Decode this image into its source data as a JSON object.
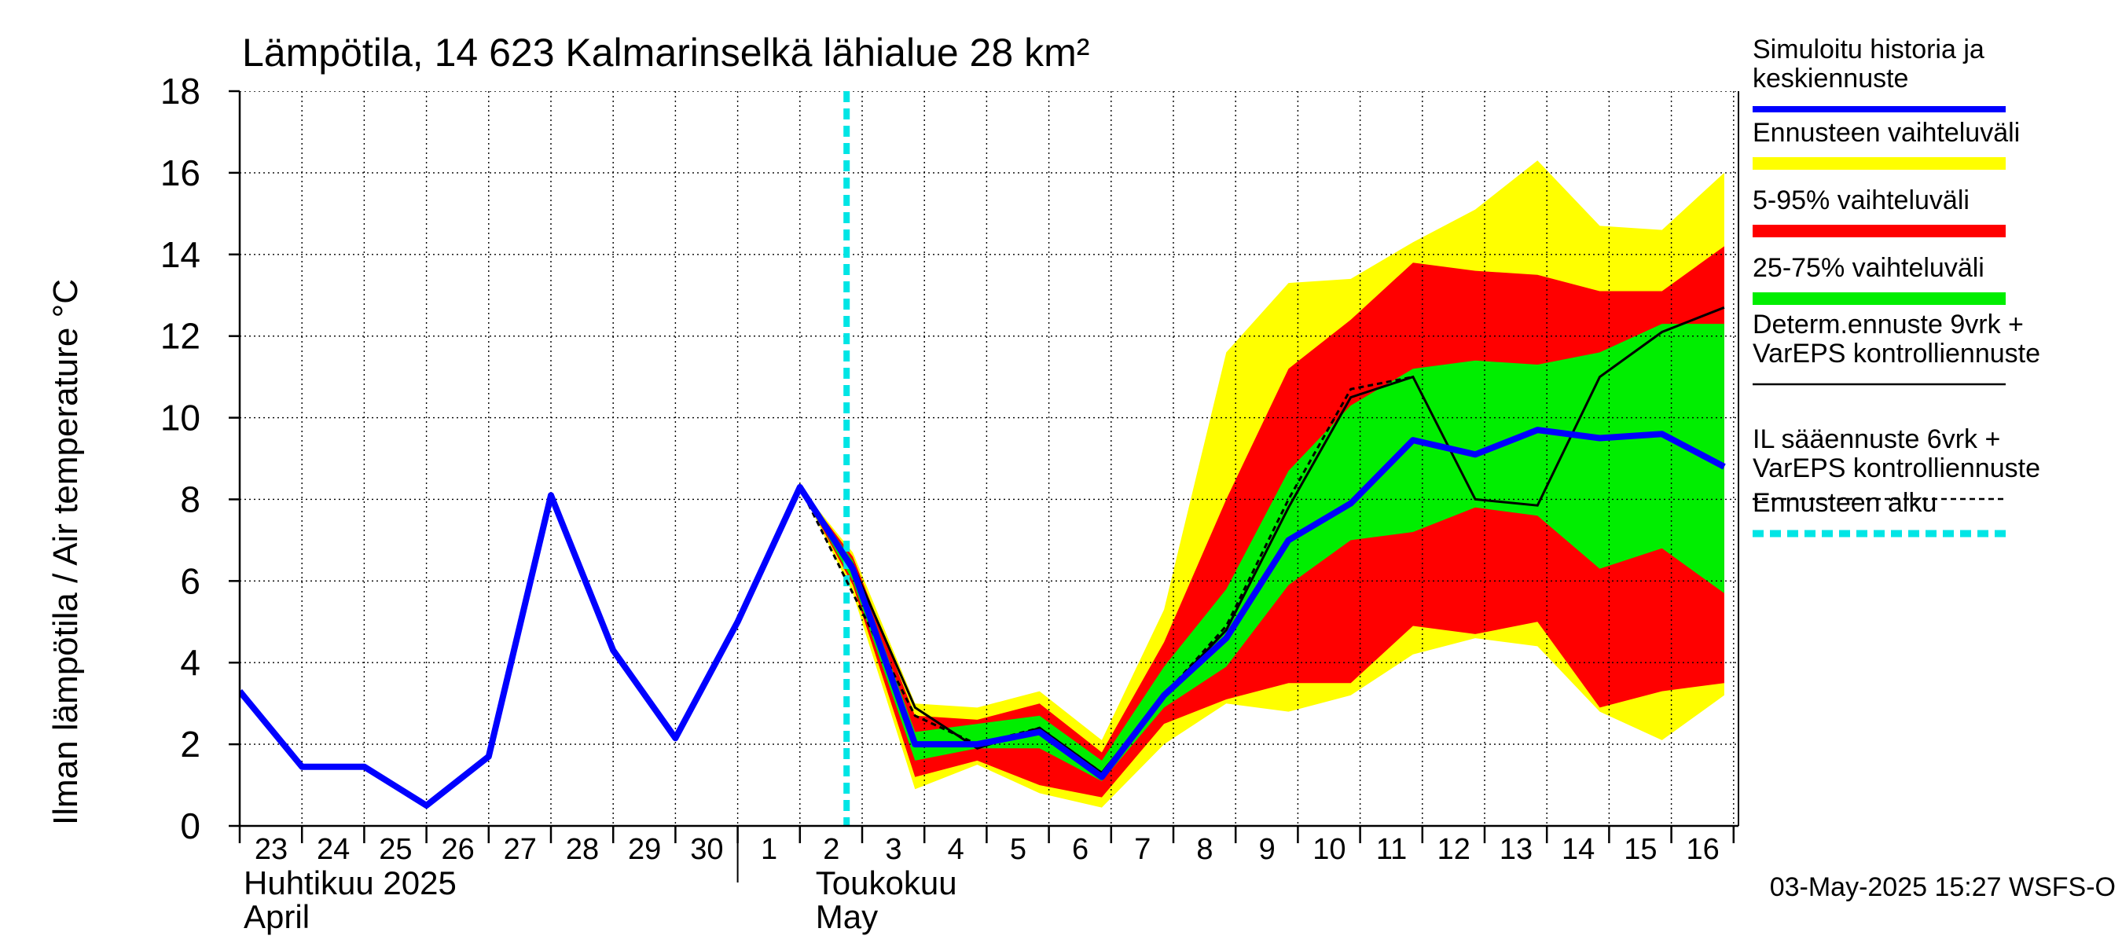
{
  "chart_data": {
    "type": "line",
    "title": "Lämpötila, 14 623 Kalmarinselkä lähialue 28 km²",
    "ylabel": "Ilman lämpötila / Air temperature   °C",
    "ylim": [
      0,
      18
    ],
    "yticks": [
      0,
      2,
      4,
      6,
      8,
      10,
      12,
      14,
      16,
      18
    ],
    "x_dates": [
      "2025-04-23",
      "2025-04-24",
      "2025-04-25",
      "2025-04-26",
      "2025-04-27",
      "2025-04-28",
      "2025-04-29",
      "2025-04-30",
      "2025-05-01",
      "2025-05-02",
      "2025-05-03",
      "2025-05-04",
      "2025-05-05",
      "2025-05-06",
      "2025-05-07",
      "2025-05-08",
      "2025-05-09",
      "2025-05-10",
      "2025-05-11",
      "2025-05-12",
      "2025-05-13",
      "2025-05-14",
      "2025-05-15",
      "2025-05-16",
      "2025-05-17"
    ],
    "day_labels": [
      "23",
      "24",
      "25",
      "26",
      "27",
      "28",
      "29",
      "30",
      "1",
      "2",
      "3",
      "4",
      "5",
      "6",
      "7",
      "8",
      "9",
      "10",
      "11",
      "12",
      "13",
      "14",
      "15",
      "16"
    ],
    "month_labels": [
      {
        "fi": "Huhtikuu  2025",
        "en": "April"
      },
      {
        "fi": "Toukokuu",
        "en": "May"
      }
    ],
    "forecast_start": "2025-05-02 18:00",
    "grid": true,
    "legend_position": "right",
    "legend": [
      {
        "label": "Simuloitu historia ja\nkeskiennuste",
        "color": "#0000ff"
      },
      {
        "label": "Ennusteen vaihteluväli",
        "color": "#ffff00"
      },
      {
        "label": "5-95% vaihteluväli",
        "color": "#ff0000"
      },
      {
        "label": "25-75% vaihteluväli",
        "color": "#00ee00"
      },
      {
        "label": "Determ.ennuste 9vrk +\nVarEPS kontrolliennuste",
        "color": "#000000"
      },
      {
        "label": "IL sääennuste 6vrk  +\n  VarEPS kontrolliennuste",
        "color": "#000000"
      },
      {
        "label": "Ennusteen alku",
        "color": "#00e5e5"
      }
    ],
    "series": [
      {
        "name": "Simuloitu historia ja keskiennuste",
        "x": [
          0,
          1,
          2,
          3,
          4,
          5,
          6,
          7,
          8,
          9,
          9.85,
          10.85,
          11.85,
          12.85,
          13.85,
          14.85,
          15.85,
          16.85,
          17.85,
          18.85,
          19.85,
          20.85,
          21.85,
          22.85,
          23.85,
          24.85
        ],
        "y": [
          3.3,
          1.45,
          1.45,
          0.5,
          1.7,
          8.1,
          4.3,
          2.15,
          5.0,
          8.3,
          6.3,
          2.0,
          2.0,
          2.3,
          1.2,
          3.2,
          4.6,
          7.0,
          7.9,
          9.45,
          9.1,
          9.7,
          9.5,
          9.6,
          8.8,
          null
        ]
      },
      {
        "name": "Determ.ennuste 9vrk + VarEPS kontrolliennuste",
        "x": [
          8,
          9,
          9.85,
          10.85,
          11.85,
          12.85,
          13.85,
          14.85,
          15.85,
          16.85,
          17.85,
          18.85,
          19.85,
          20.85,
          21.85,
          22.85,
          23.85
        ],
        "y": [
          5.0,
          8.3,
          6.4,
          2.9,
          1.9,
          2.4,
          1.3,
          3.2,
          4.8,
          7.8,
          10.5,
          11.0,
          8.0,
          7.85,
          11.0,
          12.1,
          12.7
        ]
      },
      {
        "name": "IL sääennuste 6vrk + VarEPS kontrolliennuste",
        "x": [
          9,
          9.85,
          10.85,
          11.85,
          12.85,
          13.85,
          14.85,
          15.85,
          16.85,
          17.85,
          18.85
        ],
        "y": [
          8.3,
          5.7,
          2.7,
          2.0,
          2.4,
          1.3,
          3.2,
          4.9,
          8.0,
          10.7,
          11.0
        ]
      }
    ],
    "bands": {
      "x": [
        9,
        9.85,
        10.85,
        11.85,
        12.85,
        13.85,
        14.85,
        15.85,
        16.85,
        17.85,
        18.85,
        19.85,
        20.85,
        21.85,
        22.85,
        23.85
      ],
      "range_min": [
        8.3,
        5.7,
        0.9,
        1.5,
        0.8,
        0.45,
        2.0,
        3.0,
        2.8,
        3.2,
        4.2,
        4.6,
        4.4,
        2.8,
        2.1,
        3.2
      ],
      "range_max": [
        8.3,
        6.7,
        3.0,
        2.9,
        3.3,
        2.1,
        5.3,
        11.6,
        13.3,
        13.4,
        14.3,
        15.1,
        16.3,
        14.7,
        14.6,
        16.0
      ],
      "p5": [
        8.3,
        5.9,
        1.2,
        1.6,
        1.0,
        0.7,
        2.5,
        3.1,
        3.5,
        3.5,
        4.9,
        4.7,
        5.0,
        2.9,
        3.3,
        3.5
      ],
      "p95": [
        8.3,
        6.6,
        2.7,
        2.6,
        3.0,
        1.8,
        4.5,
        8.0,
        11.2,
        12.4,
        13.8,
        13.6,
        13.5,
        13.1,
        13.1,
        14.2
      ],
      "p25": [
        8.3,
        6.0,
        1.6,
        1.9,
        1.9,
        1.1,
        2.9,
        3.9,
        5.9,
        7.0,
        7.2,
        7.8,
        7.6,
        6.3,
        6.8,
        5.7
      ],
      "p75": [
        8.3,
        6.5,
        2.3,
        2.5,
        2.7,
        1.6,
        3.9,
        5.8,
        8.7,
        10.3,
        11.2,
        11.4,
        11.3,
        11.6,
        12.3,
        12.3
      ]
    },
    "timestamp": "03-May-2025 15:27 WSFS-O"
  }
}
